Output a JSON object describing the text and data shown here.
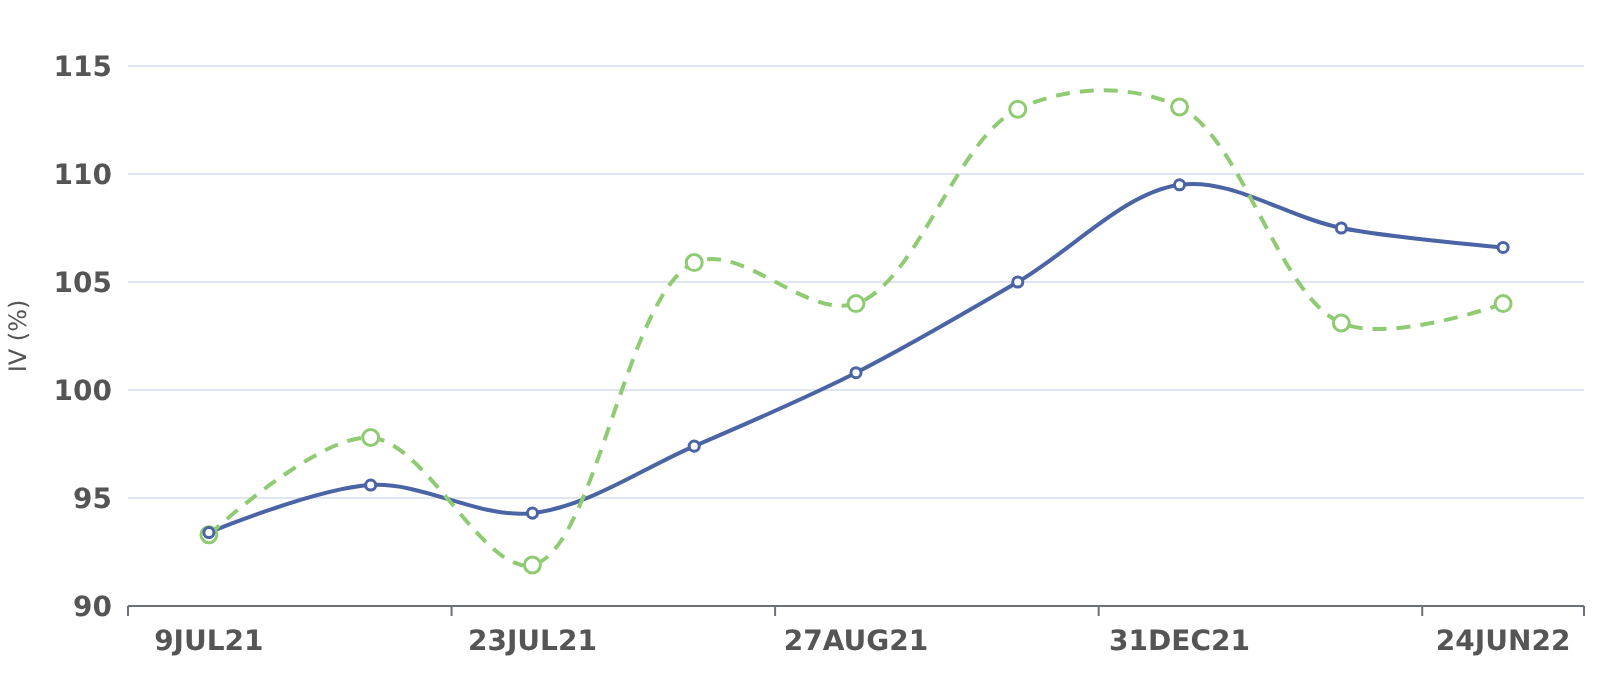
{
  "chart_data": {
    "type": "line",
    "ylabel": "IV (%)",
    "categories": [
      "9JUL21",
      null,
      "23JUL21",
      null,
      "27AUG21",
      null,
      "31DEC21",
      null,
      "24JUN22"
    ],
    "series": [
      {
        "color": "#4a64a6",
        "line_style": "solid",
        "values": [
          93.4,
          95.6,
          94.3,
          97.4,
          100.8,
          105.0,
          109.5,
          107.5,
          106.6
        ]
      },
      {
        "color": "#8fcb72",
        "line_style": "dashed",
        "values": [
          93.3,
          97.8,
          91.9,
          105.9,
          104.0,
          113.0,
          113.1,
          103.1,
          104.0
        ]
      }
    ],
    "ylim": [
      90,
      115
    ],
    "yticks": [
      90,
      95,
      100,
      105,
      110,
      115
    ],
    "grid": "y",
    "marker": "circle"
  }
}
